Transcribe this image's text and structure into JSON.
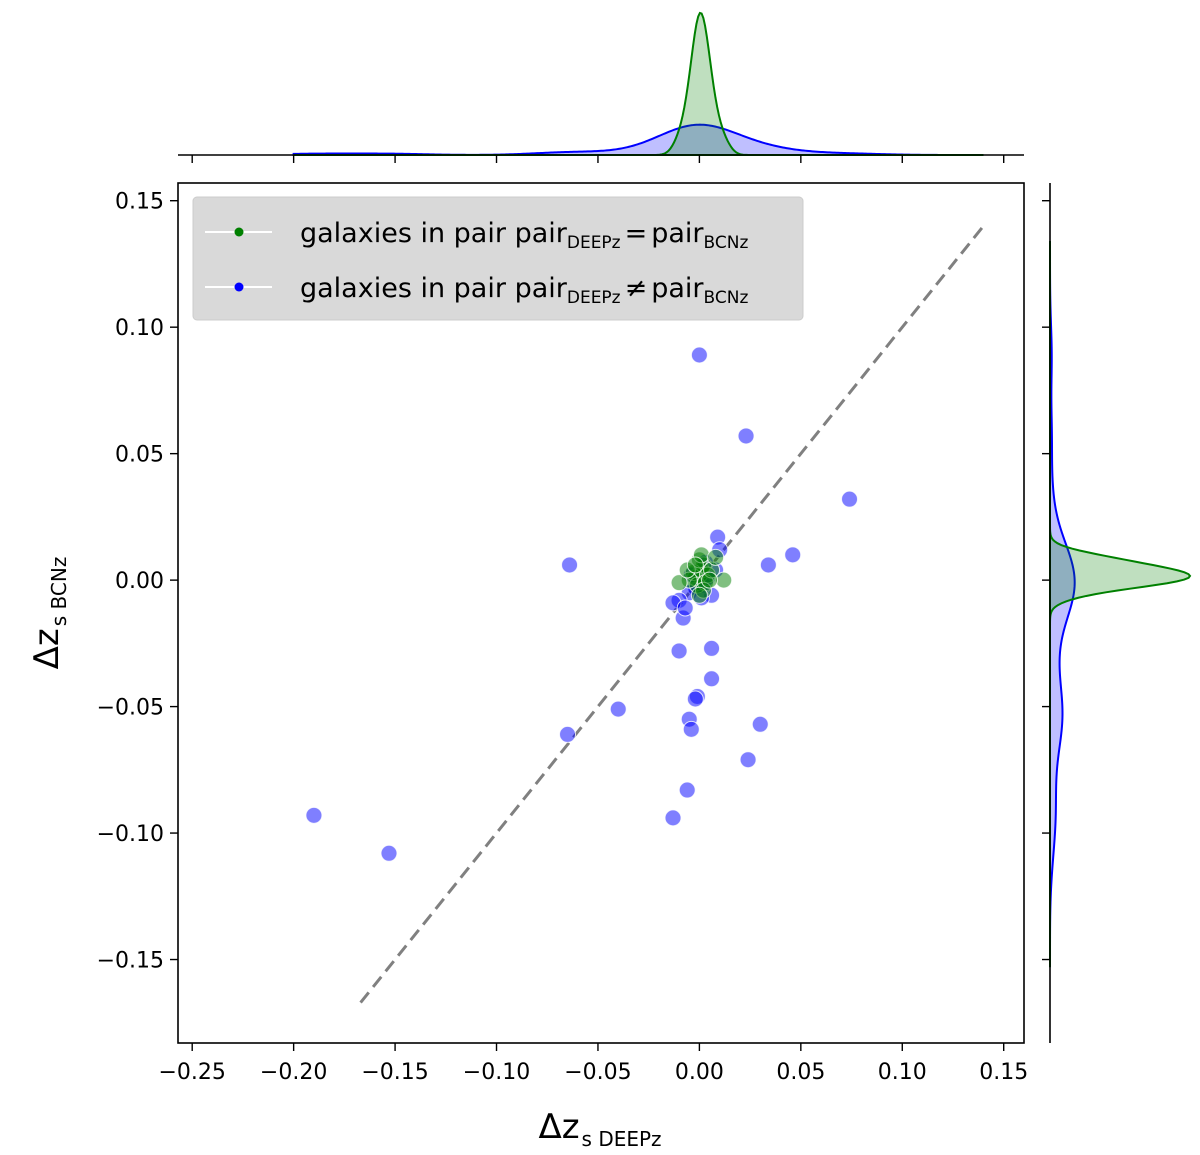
{
  "chart_data": {
    "type": "scatter",
    "xlabel": "Δz",
    "xlabel_sub": "s DEEPz",
    "ylabel": "Δz",
    "ylabel_sub": "s BCNz",
    "xlim": [
      -0.257,
      0.16
    ],
    "ylim": [
      -0.183,
      0.157
    ],
    "xticks": [
      -0.25,
      -0.2,
      -0.15,
      -0.1,
      -0.05,
      0.0,
      0.05,
      0.1,
      0.15
    ],
    "xtick_labels": [
      "−0.25",
      "−0.20",
      "−0.15",
      "−0.10",
      "−0.05",
      "0.00",
      "0.05",
      "0.10",
      "0.15"
    ],
    "yticks": [
      -0.15,
      -0.1,
      -0.05,
      0.0,
      0.05,
      0.1,
      0.15
    ],
    "ytick_labels": [
      "−0.15",
      "−0.10",
      "−0.05",
      "0.00",
      "0.05",
      "0.10",
      "0.15"
    ],
    "grid": false,
    "legend_position": "top-left",
    "reference_line": {
      "style": "dashed",
      "color": "#808080",
      "x": [
        -0.167,
        0.14
      ],
      "y": [
        -0.167,
        0.14
      ]
    },
    "series": [
      {
        "name": "galaxies in pair",
        "name_sub_1": "DEEPz",
        "relation": "=",
        "name_2": "pair",
        "name_sub_2": "BCNz",
        "color": "#008000",
        "points": [
          [
            0.0,
            0.002
          ],
          [
            0.001,
            0.004
          ],
          [
            -0.002,
            0.001
          ],
          [
            0.002,
            0.006
          ],
          [
            -0.003,
            0.003
          ],
          [
            0.004,
            0.002
          ],
          [
            0.0,
            0.008
          ],
          [
            -0.001,
            -0.002
          ],
          [
            0.003,
            -0.001
          ],
          [
            0.006,
            0.004
          ],
          [
            -0.005,
            0.0
          ],
          [
            0.001,
            0.01
          ],
          [
            0.012,
            0.0
          ],
          [
            -0.01,
            -0.001
          ],
          [
            0.008,
            0.009
          ],
          [
            -0.006,
            0.004
          ],
          [
            0.002,
            -0.004
          ],
          [
            -0.002,
            0.006
          ],
          [
            0.005,
            0.0
          ],
          [
            0.0,
            -0.006
          ]
        ],
        "kde_x_peak_at": 0.0,
        "kde_y_peak_at": 0.0
      },
      {
        "name": "galaxies in pair",
        "name_sub_1": "DEEPz",
        "relation": "≠",
        "name_2": "pair",
        "name_sub_2": "BCNz",
        "color": "#0000ff",
        "points": [
          [
            0.0,
            0.089
          ],
          [
            0.023,
            0.057
          ],
          [
            0.074,
            0.032
          ],
          [
            -0.064,
            0.006
          ],
          [
            0.034,
            0.006
          ],
          [
            0.046,
            0.01
          ],
          [
            0.009,
            0.017
          ],
          [
            0.01,
            0.012
          ],
          [
            0.008,
            0.004
          ],
          [
            -0.002,
            -0.003
          ],
          [
            -0.005,
            -0.005
          ],
          [
            -0.01,
            -0.008
          ],
          [
            -0.013,
            -0.009
          ],
          [
            0.006,
            -0.006
          ],
          [
            0.002,
            -0.002
          ],
          [
            -0.008,
            -0.015
          ],
          [
            -0.007,
            -0.011
          ],
          [
            -0.01,
            -0.028
          ],
          [
            0.006,
            -0.027
          ],
          [
            0.006,
            -0.039
          ],
          [
            -0.001,
            -0.046
          ],
          [
            -0.002,
            -0.047
          ],
          [
            -0.005,
            -0.055
          ],
          [
            -0.004,
            -0.059
          ],
          [
            -0.04,
            -0.051
          ],
          [
            -0.065,
            -0.061
          ],
          [
            0.03,
            -0.057
          ],
          [
            0.024,
            -0.071
          ],
          [
            -0.006,
            -0.083
          ],
          [
            -0.013,
            -0.094
          ],
          [
            -0.19,
            -0.093
          ],
          [
            -0.153,
            -0.108
          ],
          [
            0.004,
            0.001
          ],
          [
            -0.004,
            0.002
          ],
          [
            0.001,
            -0.007
          ],
          [
            0.003,
            0.007
          ]
        ],
        "kde_x_peak_at": 0.0,
        "kde_y_peak_at": -0.002
      }
    ]
  }
}
